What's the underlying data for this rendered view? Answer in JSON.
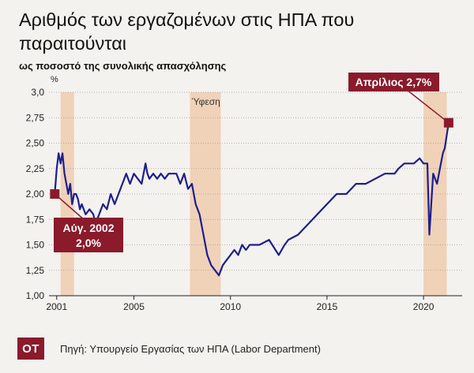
{
  "header": {
    "title": "Αριθμός των εργαζομένων στις ΗΠΑ που παραιτούνται",
    "subtitle": "ως ποσοστό της συνολικής απασχόλησης"
  },
  "footer": {
    "logo": "ΟΤ",
    "source": "Πηγή: Υπουργείο Εργασίας των ΗΠΑ (Labor Department)"
  },
  "colors": {
    "line": "#1c1f8f",
    "recession": "#f0d2b8",
    "callout": "#8b1a2b",
    "background": "#f4f2ef"
  },
  "chart_data": {
    "type": "line",
    "y_unit": "%",
    "ylim": [
      1.0,
      3.0
    ],
    "yticks": [
      1.0,
      1.25,
      1.5,
      1.75,
      2.0,
      2.25,
      2.5,
      2.75,
      3.0
    ],
    "ytick_labels": [
      "1,00",
      "1,25",
      "1,50",
      "1,75",
      "2,00",
      "2,25",
      "2,50",
      "2,75",
      "3,0"
    ],
    "xlim": [
      2000.6,
      2022.0
    ],
    "xticks": [
      2001,
      2005,
      2010,
      2015,
      2020
    ],
    "xtick_labels": [
      "2001",
      "2005",
      "2010",
      "2015",
      "2020"
    ],
    "grid": "horizontal",
    "recessions": [
      {
        "start": 2001.2,
        "end": 2001.9,
        "label": ""
      },
      {
        "start": 2007.9,
        "end": 2009.5,
        "label": "Ύφεση"
      },
      {
        "start": 2020.0,
        "end": 2021.2,
        "label": ""
      }
    ],
    "series": [
      {
        "x": [
          2000.9,
          2001.0,
          2001.1,
          2001.2,
          2001.3,
          2001.4,
          2001.5,
          2001.6,
          2001.7,
          2001.8,
          2001.9,
          2002.0,
          2002.1,
          2002.2,
          2002.3,
          2002.5,
          2002.7,
          2002.9,
          2003.0,
          2003.2,
          2003.4,
          2003.6,
          2003.8,
          2004.0,
          2004.2,
          2004.4,
          2004.6,
          2004.8,
          2005.0,
          2005.2,
          2005.4,
          2005.6,
          2005.7,
          2005.8,
          2006.0,
          2006.2,
          2006.4,
          2006.6,
          2006.8,
          2007.0,
          2007.2,
          2007.4,
          2007.6,
          2007.8,
          2008.0,
          2008.1,
          2008.2,
          2008.4,
          2008.6,
          2008.8,
          2009.0,
          2009.2,
          2009.4,
          2009.6,
          2009.8,
          2010.0,
          2010.2,
          2010.4,
          2010.6,
          2010.8,
          2011.0,
          2011.5,
          2012.0,
          2012.5,
          2012.8,
          2013.0,
          2013.5,
          2014.0,
          2014.5,
          2015.0,
          2015.5,
          2016.0,
          2016.5,
          2017.0,
          2017.5,
          2018.0,
          2018.5,
          2018.7,
          2019.0,
          2019.5,
          2019.8,
          2020.0,
          2020.2,
          2020.3,
          2020.5,
          2020.7,
          2020.9,
          2021.0,
          2021.1,
          2021.3
        ],
        "values": [
          2.0,
          2.25,
          2.4,
          2.3,
          2.4,
          2.2,
          2.1,
          2.0,
          2.1,
          1.9,
          2.0,
          2.0,
          1.95,
          1.85,
          1.9,
          1.8,
          1.85,
          1.8,
          1.7,
          1.8,
          1.9,
          1.85,
          2.0,
          1.9,
          2.0,
          2.1,
          2.2,
          2.1,
          2.2,
          2.15,
          2.1,
          2.3,
          2.2,
          2.15,
          2.2,
          2.15,
          2.2,
          2.15,
          2.2,
          2.2,
          2.2,
          2.1,
          2.2,
          2.05,
          2.1,
          2.0,
          1.9,
          1.8,
          1.6,
          1.4,
          1.3,
          1.25,
          1.2,
          1.3,
          1.35,
          1.4,
          1.45,
          1.4,
          1.5,
          1.45,
          1.5,
          1.5,
          1.55,
          1.4,
          1.5,
          1.55,
          1.6,
          1.7,
          1.8,
          1.9,
          2.0,
          2.0,
          2.1,
          2.1,
          2.15,
          2.2,
          2.2,
          2.25,
          2.3,
          2.3,
          2.35,
          2.3,
          2.3,
          1.6,
          2.2,
          2.1,
          2.3,
          2.4,
          2.45,
          2.7
        ]
      }
    ],
    "annotations": [
      {
        "x": 2000.9,
        "y": 2.0,
        "label_line1": "Αύγ. 2002",
        "label_line2": "2,0%"
      },
      {
        "x": 2021.3,
        "y": 2.7,
        "label_line1": "Απρίλιος 2,7%"
      }
    ]
  }
}
